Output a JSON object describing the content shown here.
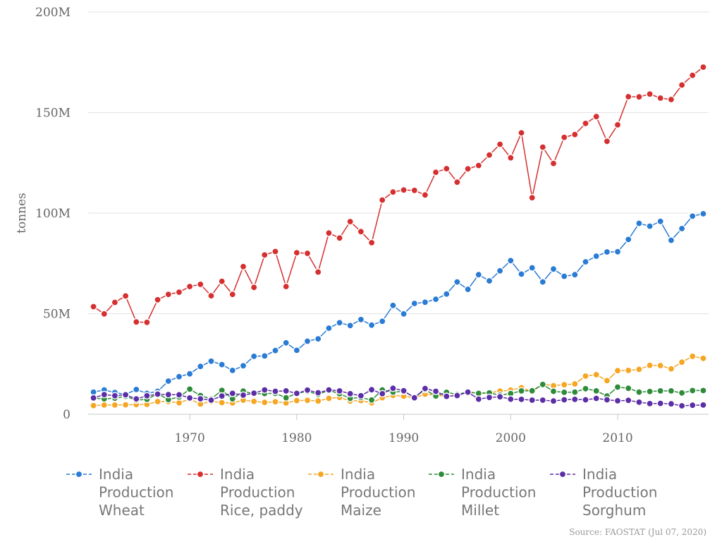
{
  "chart_data": {
    "type": "line",
    "ylabel": "tonnes",
    "ylim": [
      0,
      200000000
    ],
    "y_ticks": [
      {
        "value": 0,
        "label": "0"
      },
      {
        "value": 50000000,
        "label": "50M"
      },
      {
        "value": 100000000,
        "label": "100M"
      },
      {
        "value": 150000000,
        "label": "150M"
      },
      {
        "value": 200000000,
        "label": "200M"
      }
    ],
    "xlim": [
      1960.5,
      2018.5
    ],
    "x_ticks": [
      {
        "value": 1970,
        "label": "1970"
      },
      {
        "value": 1980,
        "label": "1980"
      },
      {
        "value": 1990,
        "label": "1990"
      },
      {
        "value": 2000,
        "label": "2000"
      },
      {
        "value": 2010,
        "label": "2010"
      }
    ],
    "grid": "horizontal",
    "legend_position": "bottom",
    "x": [
      1961,
      1962,
      1963,
      1964,
      1965,
      1966,
      1967,
      1968,
      1969,
      1970,
      1971,
      1972,
      1973,
      1974,
      1975,
      1976,
      1977,
      1978,
      1979,
      1980,
      1981,
      1982,
      1983,
      1984,
      1985,
      1986,
      1987,
      1988,
      1989,
      1990,
      1991,
      1992,
      1993,
      1994,
      1995,
      1996,
      1997,
      1998,
      1999,
      2000,
      2001,
      2002,
      2003,
      2004,
      2005,
      2006,
      2007,
      2008,
      2009,
      2010,
      2011,
      2012,
      2013,
      2014,
      2015,
      2016,
      2017,
      2018
    ],
    "series": [
      {
        "name": "India Production Wheat",
        "legend_lines": [
          "India",
          "Production",
          "Wheat"
        ],
        "color": "#2a7bd4",
        "values": [
          11.0,
          12.1,
          10.8,
          9.9,
          12.3,
          10.4,
          11.4,
          16.5,
          18.7,
          20.1,
          23.8,
          26.4,
          24.7,
          21.8,
          24.1,
          28.8,
          29.0,
          31.7,
          35.5,
          31.8,
          36.3,
          37.5,
          42.8,
          45.5,
          44.1,
          47.1,
          44.3,
          46.2,
          54.1,
          49.9,
          55.1,
          55.7,
          57.2,
          59.8,
          65.8,
          62.1,
          69.4,
          66.3,
          71.3,
          76.4,
          69.7,
          72.8,
          65.8,
          72.2,
          68.6,
          69.4,
          75.8,
          78.6,
          80.7,
          80.8,
          86.9,
          94.9,
          93.5,
          95.9,
          86.5,
          92.3,
          98.5,
          99.7
        ]
      },
      {
        "name": "India Production Rice, paddy",
        "legend_lines": [
          "India",
          "Production",
          "Rice, paddy"
        ],
        "color": "#d62f2f",
        "values": [
          53.5,
          49.9,
          55.6,
          58.8,
          45.9,
          45.7,
          56.9,
          59.6,
          60.7,
          63.5,
          64.6,
          58.9,
          66.1,
          59.6,
          73.4,
          63.1,
          79.2,
          80.9,
          63.5,
          80.3,
          80.0,
          70.7,
          90.1,
          87.6,
          95.8,
          90.8,
          85.3,
          106.5,
          110.5,
          111.5,
          111.3,
          109.0,
          120.3,
          122.1,
          115.4,
          122.0,
          123.7,
          128.9,
          134.2,
          127.5,
          139.9,
          107.7,
          132.8,
          124.7,
          137.7,
          139.1,
          144.6,
          148.0,
          135.7,
          143.9,
          157.9,
          157.8,
          159.2,
          157.2,
          156.5,
          163.7,
          168.5,
          172.6
        ]
      },
      {
        "name": "India Production Maize",
        "legend_lines": [
          "India",
          "Production",
          "Maize"
        ],
        "color": "#f5a623",
        "values": [
          4.3,
          4.6,
          4.6,
          4.7,
          4.8,
          4.9,
          6.3,
          6.3,
          5.7,
          7.5,
          5.1,
          6.4,
          5.8,
          5.6,
          7.0,
          6.4,
          5.9,
          6.2,
          5.6,
          6.8,
          6.9,
          6.6,
          7.9,
          8.4,
          6.6,
          6.8,
          5.7,
          8.2,
          9.4,
          9.0,
          8.2,
          10.0,
          9.6,
          8.9,
          9.5,
          10.8,
          10.6,
          10.7,
          11.5,
          12.0,
          13.2,
          11.2,
          15.0,
          14.2,
          14.7,
          15.1,
          19.0,
          19.7,
          16.7,
          21.7,
          21.8,
          22.3,
          24.3,
          24.2,
          22.6,
          25.9,
          28.8,
          27.8
        ]
      },
      {
        "name": "India Production Millet",
        "legend_lines": [
          "India",
          "Production",
          "Millet"
        ],
        "color": "#2e8b3a",
        "values": [
          8.0,
          7.7,
          8.0,
          8.9,
          7.0,
          7.4,
          10.2,
          7.3,
          8.6,
          12.5,
          9.3,
          7.6,
          11.9,
          7.6,
          11.5,
          10.1,
          10.3,
          10.4,
          8.2,
          10.4,
          11.4,
          9.9,
          11.9,
          10.2,
          7.9,
          8.3,
          7.1,
          12.1,
          11.0,
          11.4,
          8.4,
          12.2,
          9.1,
          10.9,
          9.9,
          11.1,
          10.4,
          10.6,
          9.5,
          10.3,
          11.6,
          11.7,
          14.8,
          11.4,
          10.9,
          11.0,
          12.7,
          11.6,
          9.1,
          13.5,
          12.9,
          11.0,
          11.3,
          11.6,
          11.6,
          10.6,
          11.8,
          11.8
        ]
      },
      {
        "name": "India Production Sorghum",
        "legend_lines": [
          "India",
          "Production",
          "Sorghum"
        ],
        "color": "#5b2ea6",
        "values": [
          8.1,
          9.8,
          9.2,
          9.7,
          7.6,
          9.2,
          10.0,
          9.8,
          9.7,
          8.1,
          7.7,
          7.0,
          9.1,
          10.4,
          9.5,
          10.5,
          12.1,
          11.4,
          11.6,
          10.4,
          12.0,
          10.7,
          12.1,
          11.6,
          10.2,
          9.2,
          12.2,
          10.2,
          12.9,
          11.7,
          8.2,
          12.8,
          11.4,
          8.9,
          9.3,
          11.0,
          7.5,
          8.4,
          8.7,
          7.5,
          7.4,
          7.0,
          7.0,
          6.6,
          7.2,
          7.4,
          7.2,
          7.9,
          7.2,
          6.7,
          6.9,
          6.0,
          5.3,
          5.4,
          5.2,
          4.2,
          4.5,
          4.6
        ]
      }
    ],
    "values_unit": "million tonnes"
  },
  "source": "Source: FAOSTAT (Jul 07, 2020)"
}
